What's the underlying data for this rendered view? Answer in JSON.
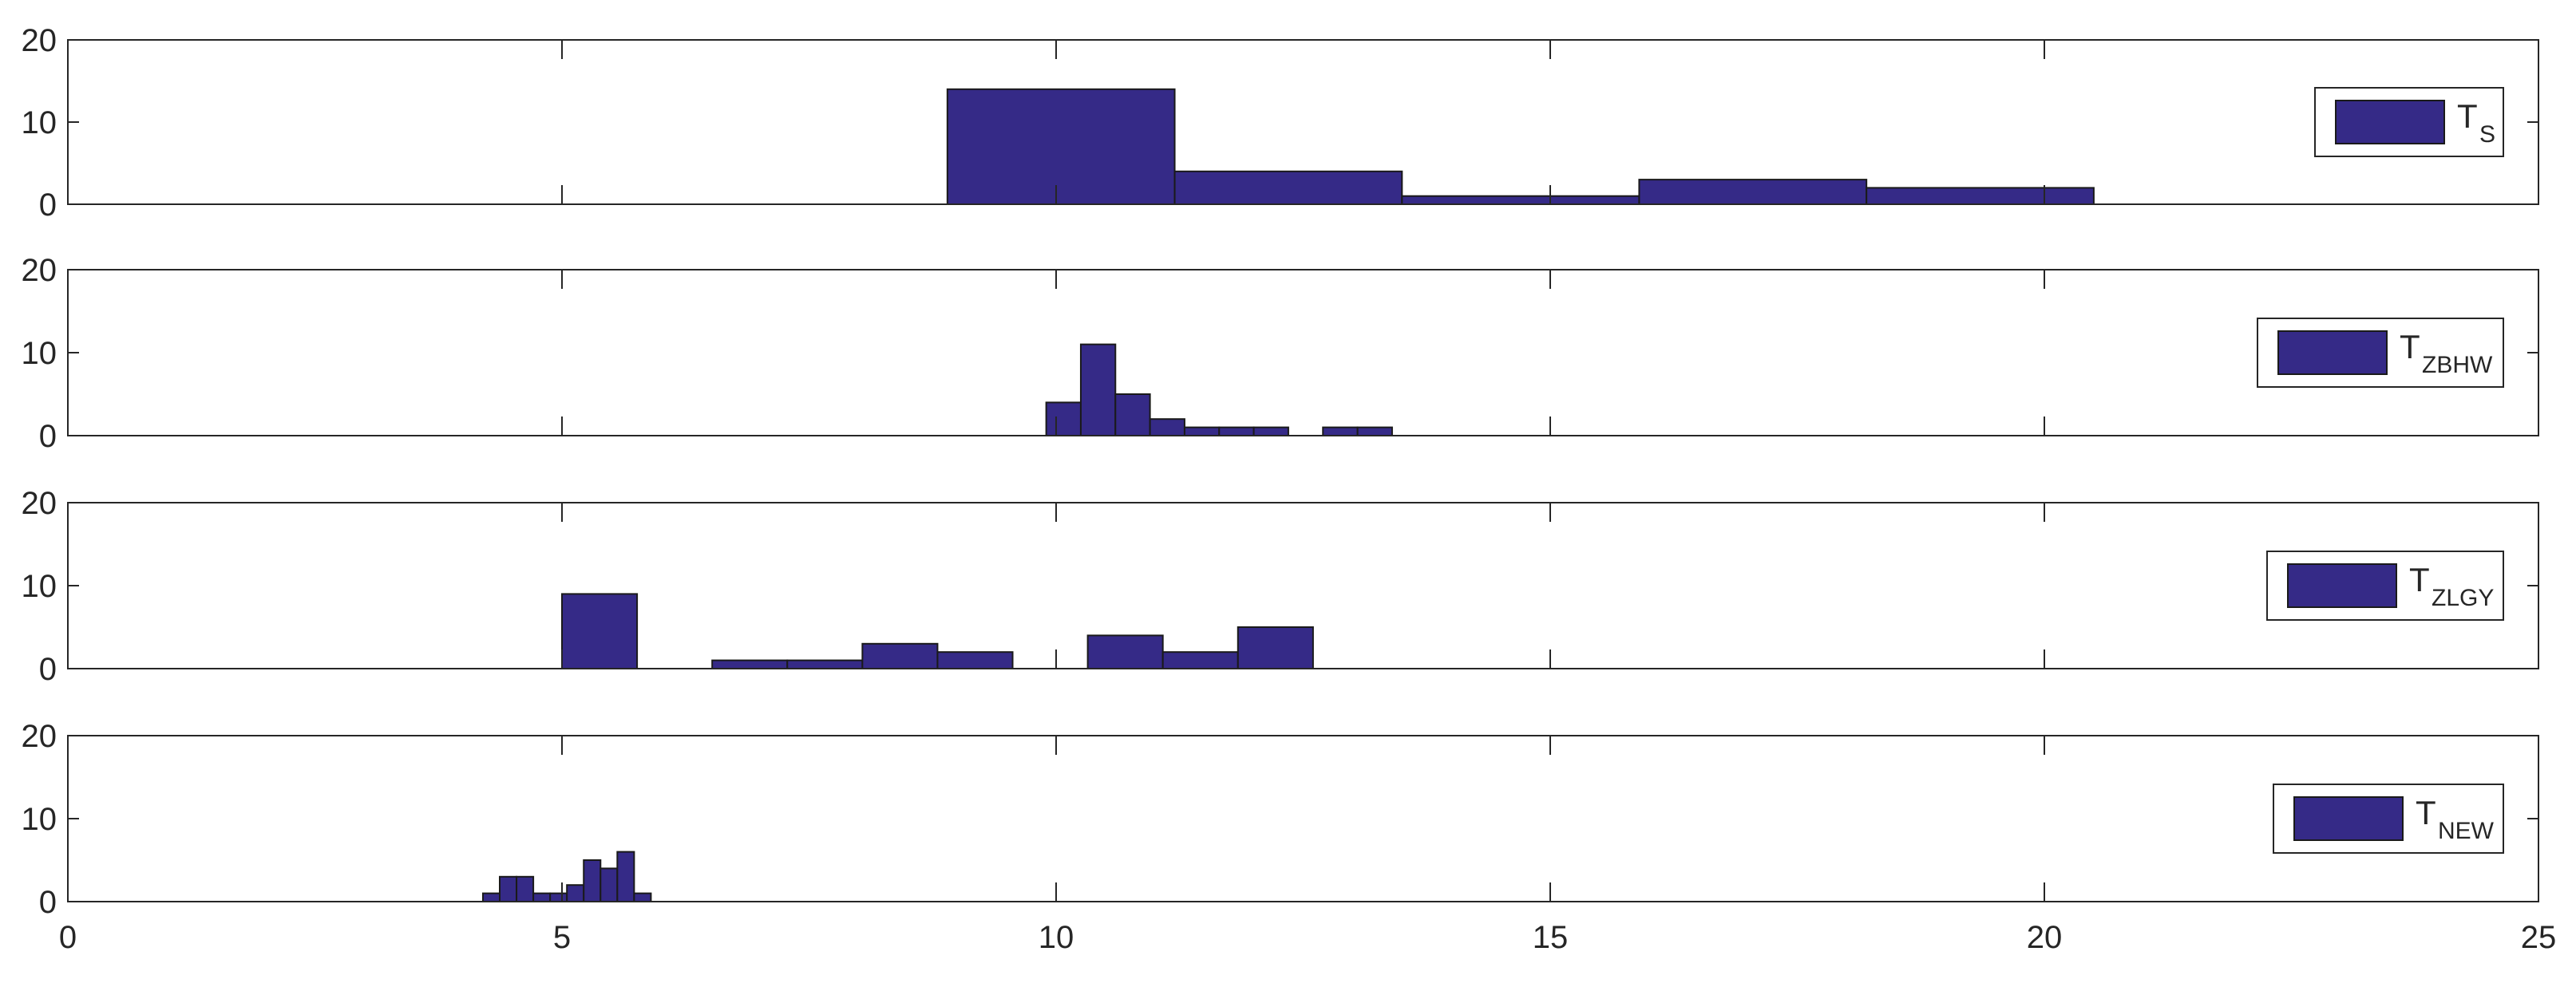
{
  "chart_data": [
    {
      "type": "bar",
      "legend": {
        "label": "T",
        "subscript": "S",
        "position": "right"
      },
      "ylim": [
        0,
        20
      ],
      "yticks": [
        0,
        10,
        20
      ],
      "xlim": [
        0,
        25
      ],
      "xticks": [
        0,
        5,
        10,
        15,
        20,
        25
      ],
      "xtick_labels_shown": false,
      "bin_edges": [
        8.9,
        11.2,
        13.5,
        15.9,
        18.2,
        20.5,
        22.8,
        25.0
      ],
      "values": [
        14,
        4,
        1,
        3,
        2,
        0,
        0
      ]
    },
    {
      "type": "bar",
      "legend": {
        "label": "T",
        "subscript": "ZBHW",
        "position": "right"
      },
      "ylim": [
        0,
        20
      ],
      "yticks": [
        0,
        10,
        20
      ],
      "xlim": [
        0,
        25
      ],
      "xticks": [
        0,
        5,
        10,
        15,
        20,
        25
      ],
      "xtick_labels_shown": false,
      "bin_edges": [
        9.9,
        10.25,
        10.6,
        10.95,
        11.3,
        11.65,
        12.0,
        12.35,
        12.7,
        13.05,
        13.4
      ],
      "values": [
        4,
        11,
        5,
        2,
        1,
        1,
        1,
        0,
        1,
        1
      ]
    },
    {
      "type": "bar",
      "legend": {
        "label": "T",
        "subscript": "ZLGY",
        "position": "right"
      },
      "ylim": [
        0,
        20
      ],
      "yticks": [
        0,
        10,
        20
      ],
      "xlim": [
        0,
        25
      ],
      "xticks": [
        0,
        5,
        10,
        15,
        20,
        25
      ],
      "xtick_labels_shown": false,
      "bin_edges": [
        5.0,
        5.76,
        6.52,
        7.28,
        8.04,
        8.8,
        9.56,
        10.32,
        11.08,
        11.84,
        12.6
      ],
      "values": [
        9,
        0,
        1,
        1,
        3,
        2,
        0,
        4,
        2,
        5
      ]
    },
    {
      "type": "bar",
      "legend": {
        "label": "T",
        "subscript": "NEW",
        "position": "right"
      },
      "ylim": [
        0,
        20
      ],
      "yticks": [
        0,
        10,
        20
      ],
      "xlim": [
        0,
        25
      ],
      "xticks": [
        0,
        5,
        10,
        15,
        20,
        25
      ],
      "xtick_labels_shown": true,
      "bin_edges": [
        4.2,
        4.37,
        4.54,
        4.71,
        4.88,
        5.05,
        5.22,
        5.39,
        5.56,
        5.73,
        5.9
      ],
      "values": [
        1,
        3,
        3,
        1,
        1,
        2,
        5,
        4,
        6,
        1
      ]
    }
  ],
  "colors": {
    "bar_fill": "#352a87",
    "bar_edge": "#1a1a1a",
    "axis": "#262626",
    "background": "#ffffff"
  }
}
